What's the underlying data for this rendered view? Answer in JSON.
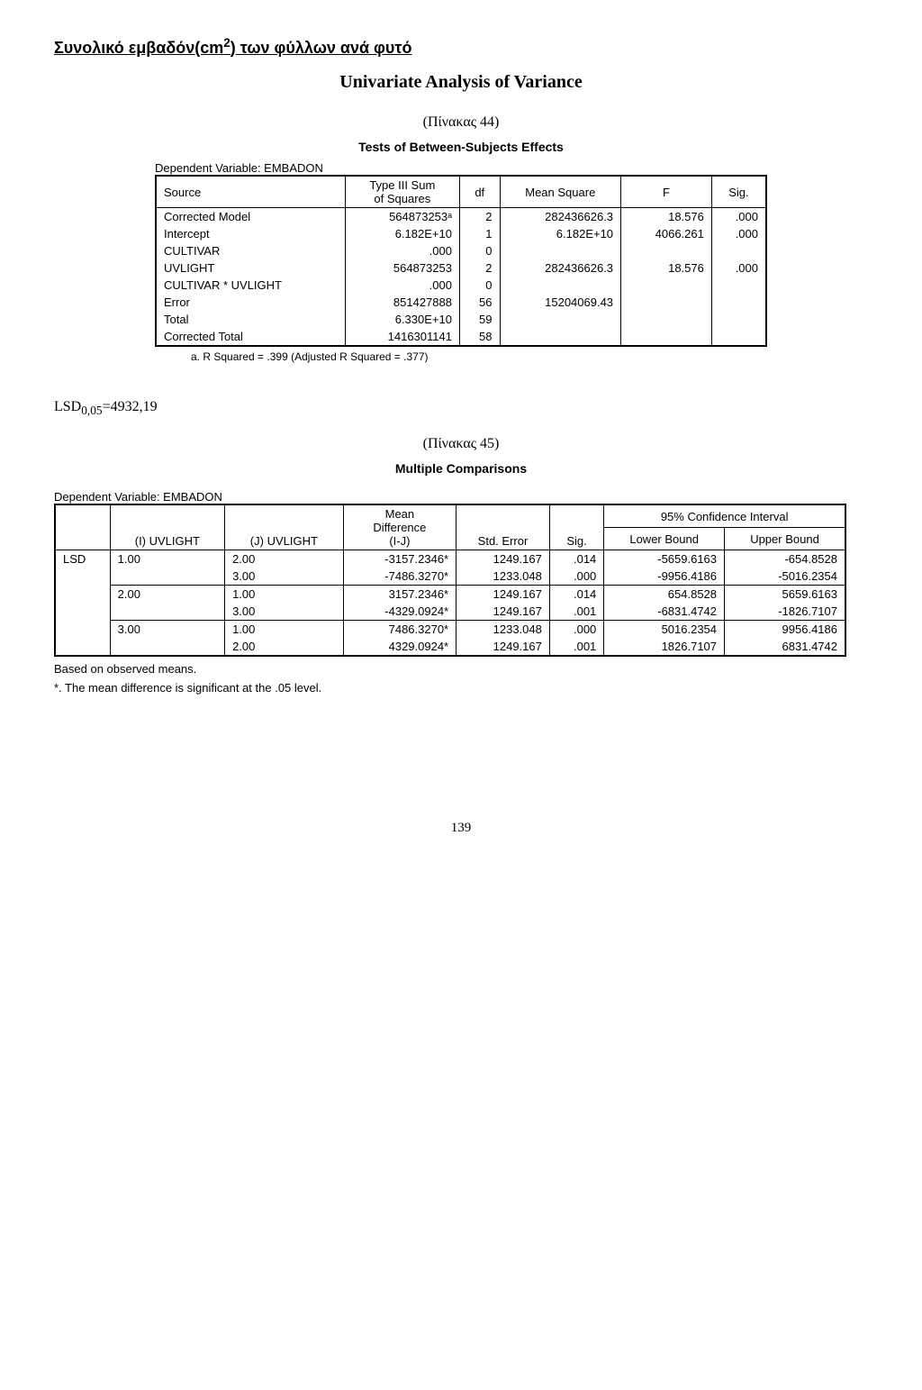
{
  "header": {
    "title_prefix": "Συνολικό εμβαδόν(cm",
    "title_sup": "2",
    "title_suffix": ") των φύλλων ανά φυτό",
    "main_title": "Univariate Analysis of Variance",
    "pinakas44": "(Πίνακας 44)",
    "tests_caption": "Tests of Between-Subjects Effects",
    "dep_var": "Dependent Variable: EMBADON"
  },
  "anova": {
    "headers": {
      "source": "Source",
      "ss_line1": "Type III Sum",
      "ss_line2": "of Squares",
      "df": "df",
      "ms": "Mean Square",
      "f": "F",
      "sig": "Sig."
    },
    "rows": [
      {
        "src": "Corrected Model",
        "ss": "564873253ᵃ",
        "df": "2",
        "ms": "282436626.3",
        "f": "18.576",
        "sig": ".000"
      },
      {
        "src": "Intercept",
        "ss": "6.182E+10",
        "df": "1",
        "ms": "6.182E+10",
        "f": "4066.261",
        "sig": ".000"
      },
      {
        "src": "CULTIVAR",
        "ss": ".000",
        "df": "0",
        "ms": "",
        "f": "",
        "sig": ""
      },
      {
        "src": "UVLIGHT",
        "ss": "564873253",
        "df": "2",
        "ms": "282436626.3",
        "f": "18.576",
        "sig": ".000"
      },
      {
        "src": "CULTIVAR * UVLIGHT",
        "ss": ".000",
        "df": "0",
        "ms": "",
        "f": "",
        "sig": ""
      },
      {
        "src": "Error",
        "ss": "851427888",
        "df": "56",
        "ms": "15204069.43",
        "f": "",
        "sig": ""
      },
      {
        "src": "Total",
        "ss": "6.330E+10",
        "df": "59",
        "ms": "",
        "f": "",
        "sig": ""
      },
      {
        "src": "Corrected Total",
        "ss": "1416301141",
        "df": "58",
        "ms": "",
        "f": "",
        "sig": ""
      }
    ],
    "footnote": "a. R Squared = .399 (Adjusted R Squared = .377)"
  },
  "lsd": {
    "prefix": "LSD",
    "sub": "0,05",
    "value": "=4932,19"
  },
  "section2": {
    "pinakas45": "(Πίνακας 45)",
    "mc_caption": "Multiple Comparisons",
    "dep_var": "Dependent Variable: EMBADON"
  },
  "mc": {
    "headers": {
      "i": "(I) UVLIGHT",
      "j": "(J) UVLIGHT",
      "md_line1": "Mean",
      "md_line2": "Difference",
      "md_line3": "(I-J)",
      "se": "Std. Error",
      "sig": "Sig.",
      "ci": "95% Confidence Interval",
      "lb": "Lower Bound",
      "ub": "Upper Bound"
    },
    "lsd_label": "LSD",
    "rows": [
      {
        "i": "1.00",
        "j": "2.00",
        "md": "-3157.2346*",
        "se": "1249.167",
        "sig": ".014",
        "lb": "-5659.6163",
        "ub": "-654.8528",
        "top": true
      },
      {
        "i": "",
        "j": "3.00",
        "md": "-7486.3270*",
        "se": "1233.048",
        "sig": ".000",
        "lb": "-9956.4186",
        "ub": "-5016.2354",
        "top": false
      },
      {
        "i": "2.00",
        "j": "1.00",
        "md": "3157.2346*",
        "se": "1249.167",
        "sig": ".014",
        "lb": "654.8528",
        "ub": "5659.6163",
        "top": true
      },
      {
        "i": "",
        "j": "3.00",
        "md": "-4329.0924*",
        "se": "1249.167",
        "sig": ".001",
        "lb": "-6831.4742",
        "ub": "-1826.7107",
        "top": false
      },
      {
        "i": "3.00",
        "j": "1.00",
        "md": "7486.3270*",
        "se": "1233.048",
        "sig": ".000",
        "lb": "5016.2354",
        "ub": "9956.4186",
        "top": true
      },
      {
        "i": "",
        "j": "2.00",
        "md": "4329.0924*",
        "se": "1249.167",
        "sig": ".001",
        "lb": "1826.7107",
        "ub": "6831.4742",
        "top": false
      }
    ],
    "note1": "Based on observed means.",
    "note2": "*. The mean difference is significant at the .05 level."
  },
  "page_number": "139"
}
